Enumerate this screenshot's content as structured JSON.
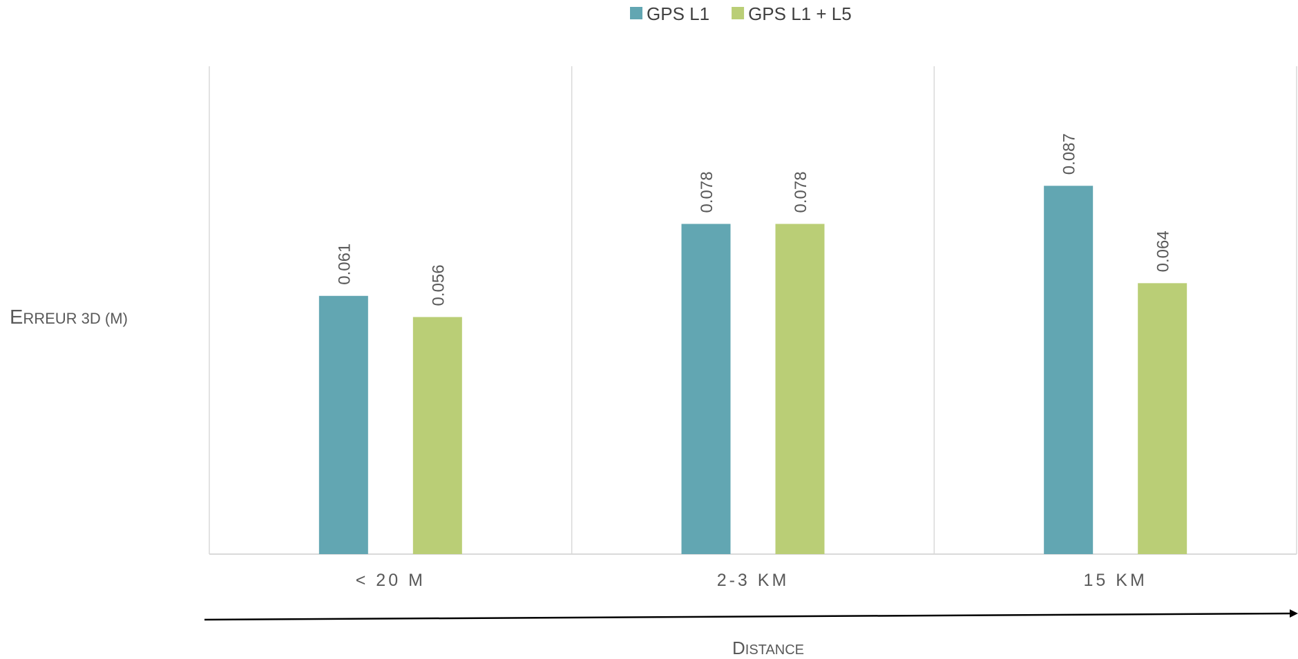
{
  "chart_data": {
    "type": "bar",
    "title": "",
    "categories": [
      "< 20 m",
      "2-3 km",
      "15 km"
    ],
    "series": [
      {
        "name": "GPS L1",
        "values": [
          0.061,
          0.078,
          0.087
        ],
        "color": "#62A6B2"
      },
      {
        "name": "GPS L1 + L5",
        "values": [
          0.056,
          0.078,
          0.064
        ],
        "color": "#BACE76"
      }
    ],
    "data_labels": [
      [
        "0.061",
        "0.078",
        "0.087"
      ],
      [
        "0.056",
        "0.078",
        "0.064"
      ]
    ],
    "xlabel": "Distance",
    "ylabel": "Erreur 3D (m)",
    "ylim": [
      0,
      0.1
    ],
    "grid": "vertical separators between categories",
    "legend_position": "top-center",
    "x_arrow": true
  }
}
